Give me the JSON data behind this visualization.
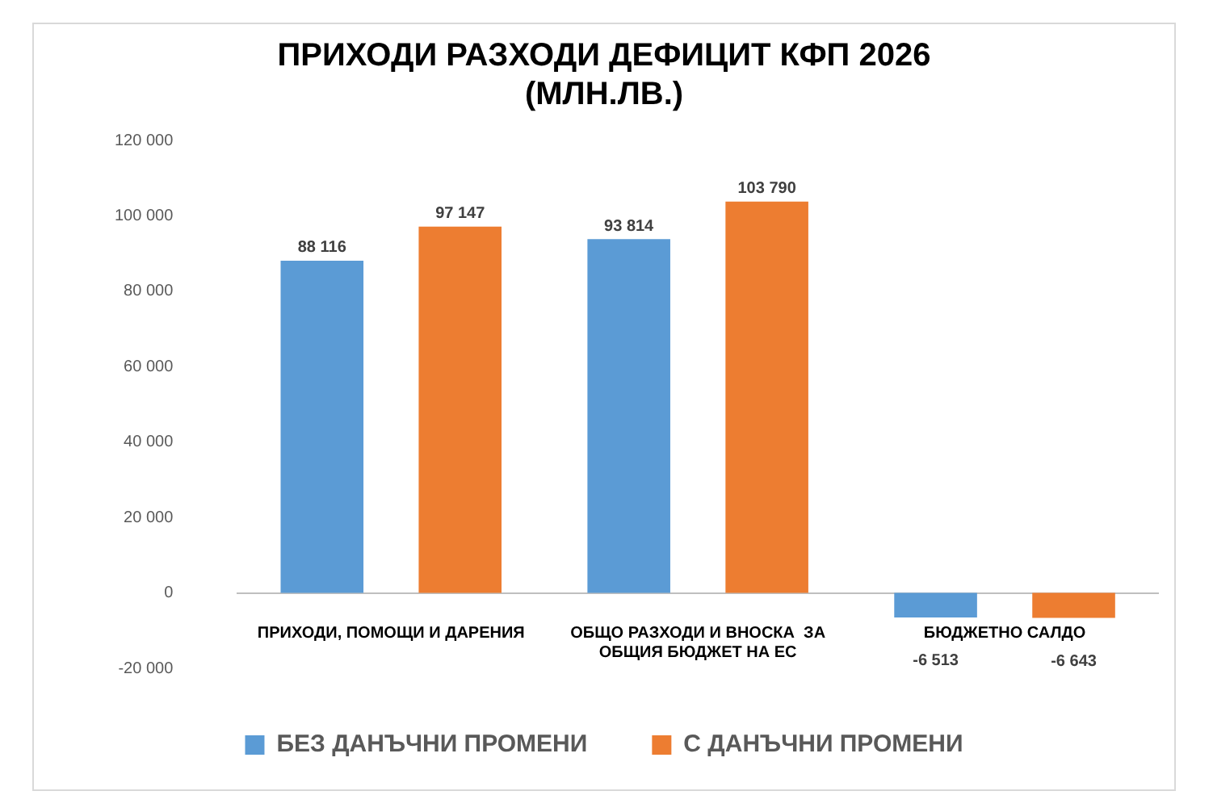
{
  "chart_data": {
    "type": "bar",
    "title": [
      "ПРИХОДИ РАЗХОДИ ДЕФИЦИТ КФП 2026",
      "(МЛН.ЛВ.)"
    ],
    "categories": [
      "ПРИХОДИ, ПОМОЩИ И ДАРЕНИЯ",
      "ОБЩО РАЗХОДИ И ВНОСКА  ЗА ОБЩИЯ БЮДЖЕТ НА ЕС",
      "БЮДЖЕТНО САЛДО"
    ],
    "series": [
      {
        "name": "БЕЗ ДАНЪЧНИ ПРОМЕНИ",
        "color": "#5b9bd5",
        "values": [
          88116,
          93814,
          -6513
        ],
        "value_labels": [
          "88 116",
          "93 814",
          "-6 513"
        ]
      },
      {
        "name": "С ДАНЪЧНИ ПРОМЕНИ",
        "color": "#ed7d31",
        "values": [
          97147,
          103790,
          -6643
        ],
        "value_labels": [
          "97 147",
          "103 790",
          "-6 643"
        ]
      }
    ],
    "ylim": [
      -20000,
      120000
    ],
    "yticks": [
      {
        "value": -20000,
        "label": "-20 000"
      },
      0,
      {
        "value": 20000,
        "label": "20 000"
      },
      {
        "value": 40000,
        "label": "40 000"
      },
      {
        "value": 60000,
        "label": "60 000"
      },
      {
        "value": 80000,
        "label": "80 000"
      },
      {
        "value": 100000,
        "label": "100 000"
      },
      {
        "value": 120000,
        "label": "120 000"
      }
    ],
    "grid": false,
    "legend": "bottom"
  }
}
